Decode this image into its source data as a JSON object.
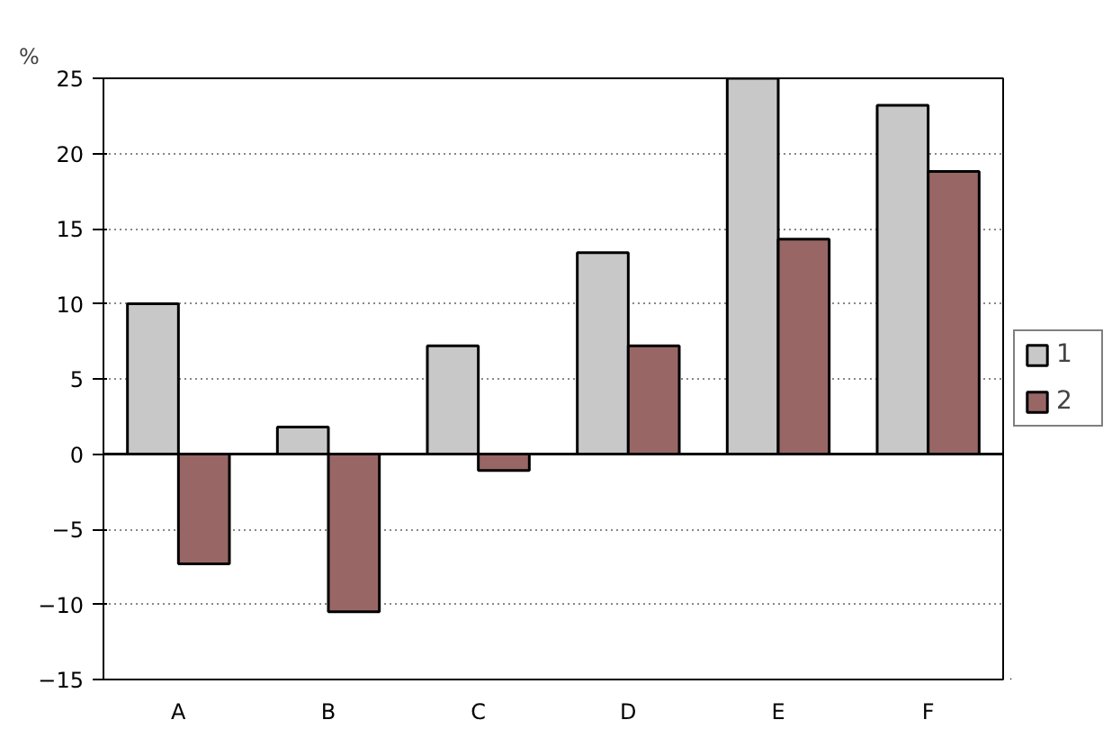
{
  "chart_data": {
    "type": "bar",
    "ylabel": "%",
    "categories": [
      "A",
      "B",
      "C",
      "D",
      "E",
      "F"
    ],
    "series": [
      {
        "name": "1",
        "color": "#c8c8c8",
        "values": [
          10,
          1.8,
          7.2,
          13.4,
          25,
          23.2
        ]
      },
      {
        "name": "2",
        "color": "#996666",
        "values": [
          -7.3,
          -10.5,
          -1.1,
          7.2,
          14.3,
          18.8
        ]
      }
    ],
    "ylim": [
      -15,
      25
    ],
    "yticks": [
      -15,
      -10,
      -5,
      0,
      5,
      10,
      15,
      20,
      25
    ],
    "grid": "y",
    "legend": "right"
  }
}
